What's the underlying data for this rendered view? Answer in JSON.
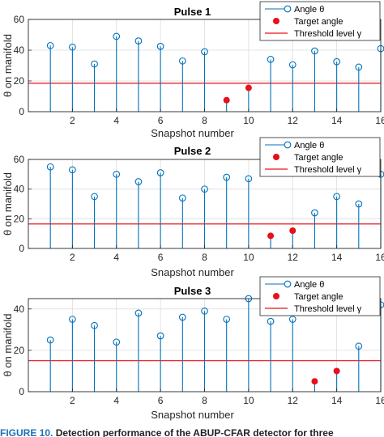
{
  "caption": {
    "label": "FIGURE 10.",
    "text": "Detection performance of the ABUP-CFAR detector for three"
  },
  "chart_data": [
    {
      "type": "stem",
      "title": "Pulse 1",
      "xlabel": "Snapshot number",
      "ylabel": "θ on manifold",
      "xlim": [
        0,
        16
      ],
      "ylim": [
        0,
        60
      ],
      "xticks": [
        2,
        4,
        6,
        8,
        10,
        12,
        14,
        16
      ],
      "xtick_labels": [
        "2",
        "4",
        "6",
        "8",
        "10",
        "12",
        "14",
        "16"
      ],
      "yticks": [
        0,
        20,
        40,
        60
      ],
      "ytick_labels": [
        "0",
        "20",
        "40",
        "60"
      ],
      "grid": true,
      "legend_position": "top-right",
      "threshold": 18.5,
      "x": [
        1,
        2,
        3,
        4,
        5,
        6,
        7,
        8,
        9,
        10,
        11,
        12,
        13,
        14,
        15,
        16
      ],
      "angles": [
        43,
        42,
        31,
        49,
        46,
        42.5,
        33,
        39,
        7.5,
        15.5,
        34,
        30.5,
        39.5,
        32.5,
        29,
        41
      ],
      "targets": [
        9,
        10
      ],
      "legend": [
        "Angle θ",
        "Target angle",
        "Threshold level γ"
      ]
    },
    {
      "type": "stem",
      "title": "Pulse 2",
      "xlabel": "Snapshot number",
      "ylabel": "θ on manifold",
      "xlim": [
        0,
        16
      ],
      "ylim": [
        0,
        60
      ],
      "xticks": [
        2,
        4,
        6,
        8,
        10,
        12,
        14,
        16
      ],
      "xtick_labels": [
        "2",
        "4",
        "6",
        "8",
        "10",
        "12",
        "14",
        "16"
      ],
      "yticks": [
        0,
        20,
        40,
        60
      ],
      "ytick_labels": [
        "0",
        "20",
        "40",
        "60"
      ],
      "grid": true,
      "legend_position": "top-right",
      "threshold": 16.5,
      "x": [
        1,
        2,
        3,
        4,
        5,
        6,
        7,
        8,
        9,
        10,
        11,
        12,
        13,
        14,
        15,
        16
      ],
      "angles": [
        55,
        53,
        35,
        50,
        45,
        51,
        34,
        40,
        48,
        47,
        8.5,
        12,
        24,
        35,
        30,
        50
      ],
      "targets": [
        11,
        12
      ],
      "legend": [
        "Angle θ",
        "Target angle",
        "Threshold level γ"
      ]
    },
    {
      "type": "stem",
      "title": "Pulse 3",
      "xlabel": "Snapshot number",
      "ylabel": "θ on manifold",
      "xlim": [
        0,
        16
      ],
      "ylim": [
        0,
        45
      ],
      "xticks": [
        2,
        4,
        6,
        8,
        10,
        12,
        14,
        16
      ],
      "xtick_labels": [
        "2",
        "4",
        "6",
        "8",
        "10",
        "12",
        "14",
        "16"
      ],
      "yticks": [
        0,
        20,
        40
      ],
      "ytick_labels": [
        "0",
        "20",
        "40"
      ],
      "grid": true,
      "legend_position": "top-right",
      "threshold": 15,
      "x": [
        1,
        2,
        3,
        4,
        5,
        6,
        7,
        8,
        9,
        10,
        11,
        12,
        13,
        14,
        15,
        16
      ],
      "angles": [
        25,
        35,
        32,
        24,
        38,
        27,
        36,
        39,
        35,
        45,
        34,
        35,
        5,
        10,
        22,
        42
      ],
      "targets": [
        13,
        14
      ],
      "legend": [
        "Angle θ",
        "Target angle",
        "Threshold level γ"
      ]
    }
  ],
  "colors": {
    "stem": "#0072bd",
    "target": "#e8101a",
    "threshold": "#e8101a",
    "grid": "#dcdcdc",
    "axis": "#262626"
  }
}
